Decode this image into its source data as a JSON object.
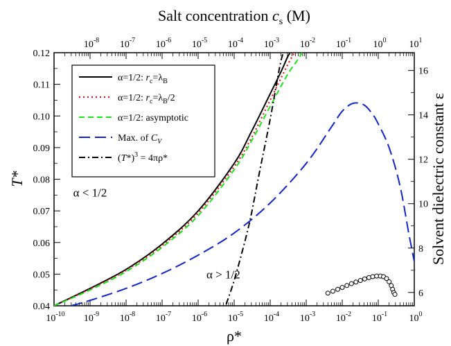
{
  "chart_data": {
    "type": "line",
    "axes": {
      "x_bottom": {
        "label": "ρ*",
        "scale": "log",
        "range": [
          1e-10,
          1
        ],
        "ticks": [
          {
            "m": "10",
            "e": "-10"
          },
          {
            "m": "10",
            "e": "-9"
          },
          {
            "m": "10",
            "e": "-8"
          },
          {
            "m": "10",
            "e": "-7"
          },
          {
            "m": "10",
            "e": "-6"
          },
          {
            "m": "10",
            "e": "-5"
          },
          {
            "m": "10",
            "e": "-4"
          },
          {
            "m": "10",
            "e": "-3"
          },
          {
            "m": "10",
            "e": "-2"
          },
          {
            "m": "10",
            "e": "-1"
          },
          {
            "m": "10",
            "e": "0"
          }
        ]
      },
      "x_top": {
        "label_main": "Salt concentration ",
        "label_var": "c",
        "label_sub": "s",
        "label_unit": " (M)",
        "scale": "log",
        "range": [
          1e-09,
          10
        ],
        "ticks": [
          {
            "m": "10",
            "e": "-8"
          },
          {
            "m": "10",
            "e": "-7"
          },
          {
            "m": "10",
            "e": "-6"
          },
          {
            "m": "10",
            "e": "-5"
          },
          {
            "m": "10",
            "e": "-4"
          },
          {
            "m": "10",
            "e": "-3"
          },
          {
            "m": "10",
            "e": "-2"
          },
          {
            "m": "10",
            "e": "-1"
          },
          {
            "m": "10",
            "e": "0"
          },
          {
            "m": "10",
            "e": "1"
          }
        ]
      },
      "y_left": {
        "label": "T*",
        "range": [
          0.04,
          0.12
        ],
        "ticks": [
          "0.04",
          "0.05",
          "0.06",
          "0.07",
          "0.08",
          "0.09",
          "0.10",
          "0.11",
          "0.12"
        ]
      },
      "y_right": {
        "label": "Solvent dielectric constant ε",
        "range": [
          5.4,
          16.8
        ],
        "ticks": [
          "6",
          "8",
          "10",
          "12",
          "14",
          "16"
        ]
      }
    },
    "legend": {
      "position": "top-left",
      "entries": [
        {
          "parts": [
            {
              "t": "α=1/2: "
            },
            {
              "t": "r",
              "i": true
            },
            {
              "t": "c",
              "sub": true
            },
            {
              "t": "=λ"
            },
            {
              "t": "B",
              "sub": true
            }
          ]
        },
        {
          "parts": [
            {
              "t": "α=1/2: "
            },
            {
              "t": "r",
              "i": true
            },
            {
              "t": "c",
              "sub": true
            },
            {
              "t": "=λ"
            },
            {
              "t": "B",
              "sub": true
            },
            {
              "t": "/2"
            }
          ]
        },
        {
          "parts": [
            {
              "t": "α=1/2: asymptotic"
            }
          ]
        },
        {
          "parts": [
            {
              "t": "Max. of "
            },
            {
              "t": "C",
              "i": true
            },
            {
              "t": "V",
              "sub": true,
              "i": true
            }
          ]
        },
        {
          "parts": [
            {
              "t": "("
            },
            {
              "t": "T",
              "i": true
            },
            {
              "t": "*)"
            },
            {
              "t": "3",
              "sup": true
            },
            {
              "t": " = 4πρ*"
            }
          ]
        }
      ]
    },
    "annotations": [
      {
        "text": "α < 1/2",
        "x": 1e-09,
        "y": 0.0745
      },
      {
        "text": "α > 1/2",
        "x": 5e-06,
        "y": 0.0487
      }
    ],
    "series": [
      {
        "style": "solid",
        "color": "#000000",
        "x": [
          1e-10,
          1e-09,
          1e-08,
          1e-07,
          1e-06,
          1e-05,
          3e-05,
          0.0001,
          0.0002,
          0.0003,
          0.00038
        ],
        "y": [
          0.04,
          0.0455,
          0.0515,
          0.0595,
          0.07,
          0.085,
          0.095,
          0.107,
          0.114,
          0.1185,
          0.1205
        ]
      },
      {
        "style": "dotted",
        "color": "#e8141c",
        "x": [
          1e-10,
          1e-09,
          1e-08,
          1e-07,
          1e-06,
          1e-05,
          3e-05,
          0.0001,
          0.0003,
          0.0005
        ],
        "y": [
          0.04,
          0.0453,
          0.0512,
          0.059,
          0.0693,
          0.084,
          0.093,
          0.105,
          0.116,
          0.1205
        ]
      },
      {
        "style": "dashed",
        "color": "#19e619",
        "x": [
          1e-10,
          1e-09,
          1e-08,
          1e-07,
          1e-06,
          1e-05,
          3e-05,
          0.0001,
          0.0003,
          0.0006,
          0.0008
        ],
        "y": [
          0.04,
          0.045,
          0.0508,
          0.0585,
          0.0685,
          0.083,
          0.092,
          0.103,
          0.113,
          0.118,
          0.1205
        ]
      },
      {
        "style": "long-dash",
        "color": "#1024cc",
        "x": [
          3e-10,
          1e-09,
          1e-08,
          1e-07,
          1e-06,
          1e-05,
          0.0001,
          0.001,
          0.005,
          0.01,
          0.02,
          0.04,
          0.07,
          0.1,
          0.2,
          0.4,
          0.7,
          1
        ],
        "y": [
          0.04,
          0.0417,
          0.0455,
          0.0502,
          0.056,
          0.063,
          0.0725,
          0.085,
          0.0965,
          0.1015,
          0.104,
          0.1035,
          0.1005,
          0.0975,
          0.09,
          0.078,
          0.063,
          0.054
        ]
      },
      {
        "style": "dash-dot",
        "color": "#000000",
        "x": [
          6e-06,
          1e-05,
          2e-05,
          3e-05,
          5e-05,
          0.0001,
          0.0002,
          0.0003
        ],
        "y": [
          0.0405,
          0.048,
          0.0605,
          0.069,
          0.082,
          0.099,
          0.1175,
          0.1225
        ]
      },
      {
        "style": "markers",
        "color": "#000000",
        "x": [
          0.004,
          0.0055,
          0.0075,
          0.01,
          0.0135,
          0.018,
          0.024,
          0.032,
          0.042,
          0.055,
          0.07,
          0.09,
          0.115,
          0.14,
          0.17,
          0.2,
          0.23,
          0.25,
          0.27,
          0.29
        ],
        "y": [
          0.044,
          0.0446,
          0.0452,
          0.0458,
          0.0464,
          0.047,
          0.0475,
          0.048,
          0.0485,
          0.0489,
          0.0492,
          0.0494,
          0.0494,
          0.0492,
          0.0486,
          0.0476,
          0.0464,
          0.0452,
          0.0442,
          0.0436
        ]
      }
    ]
  }
}
